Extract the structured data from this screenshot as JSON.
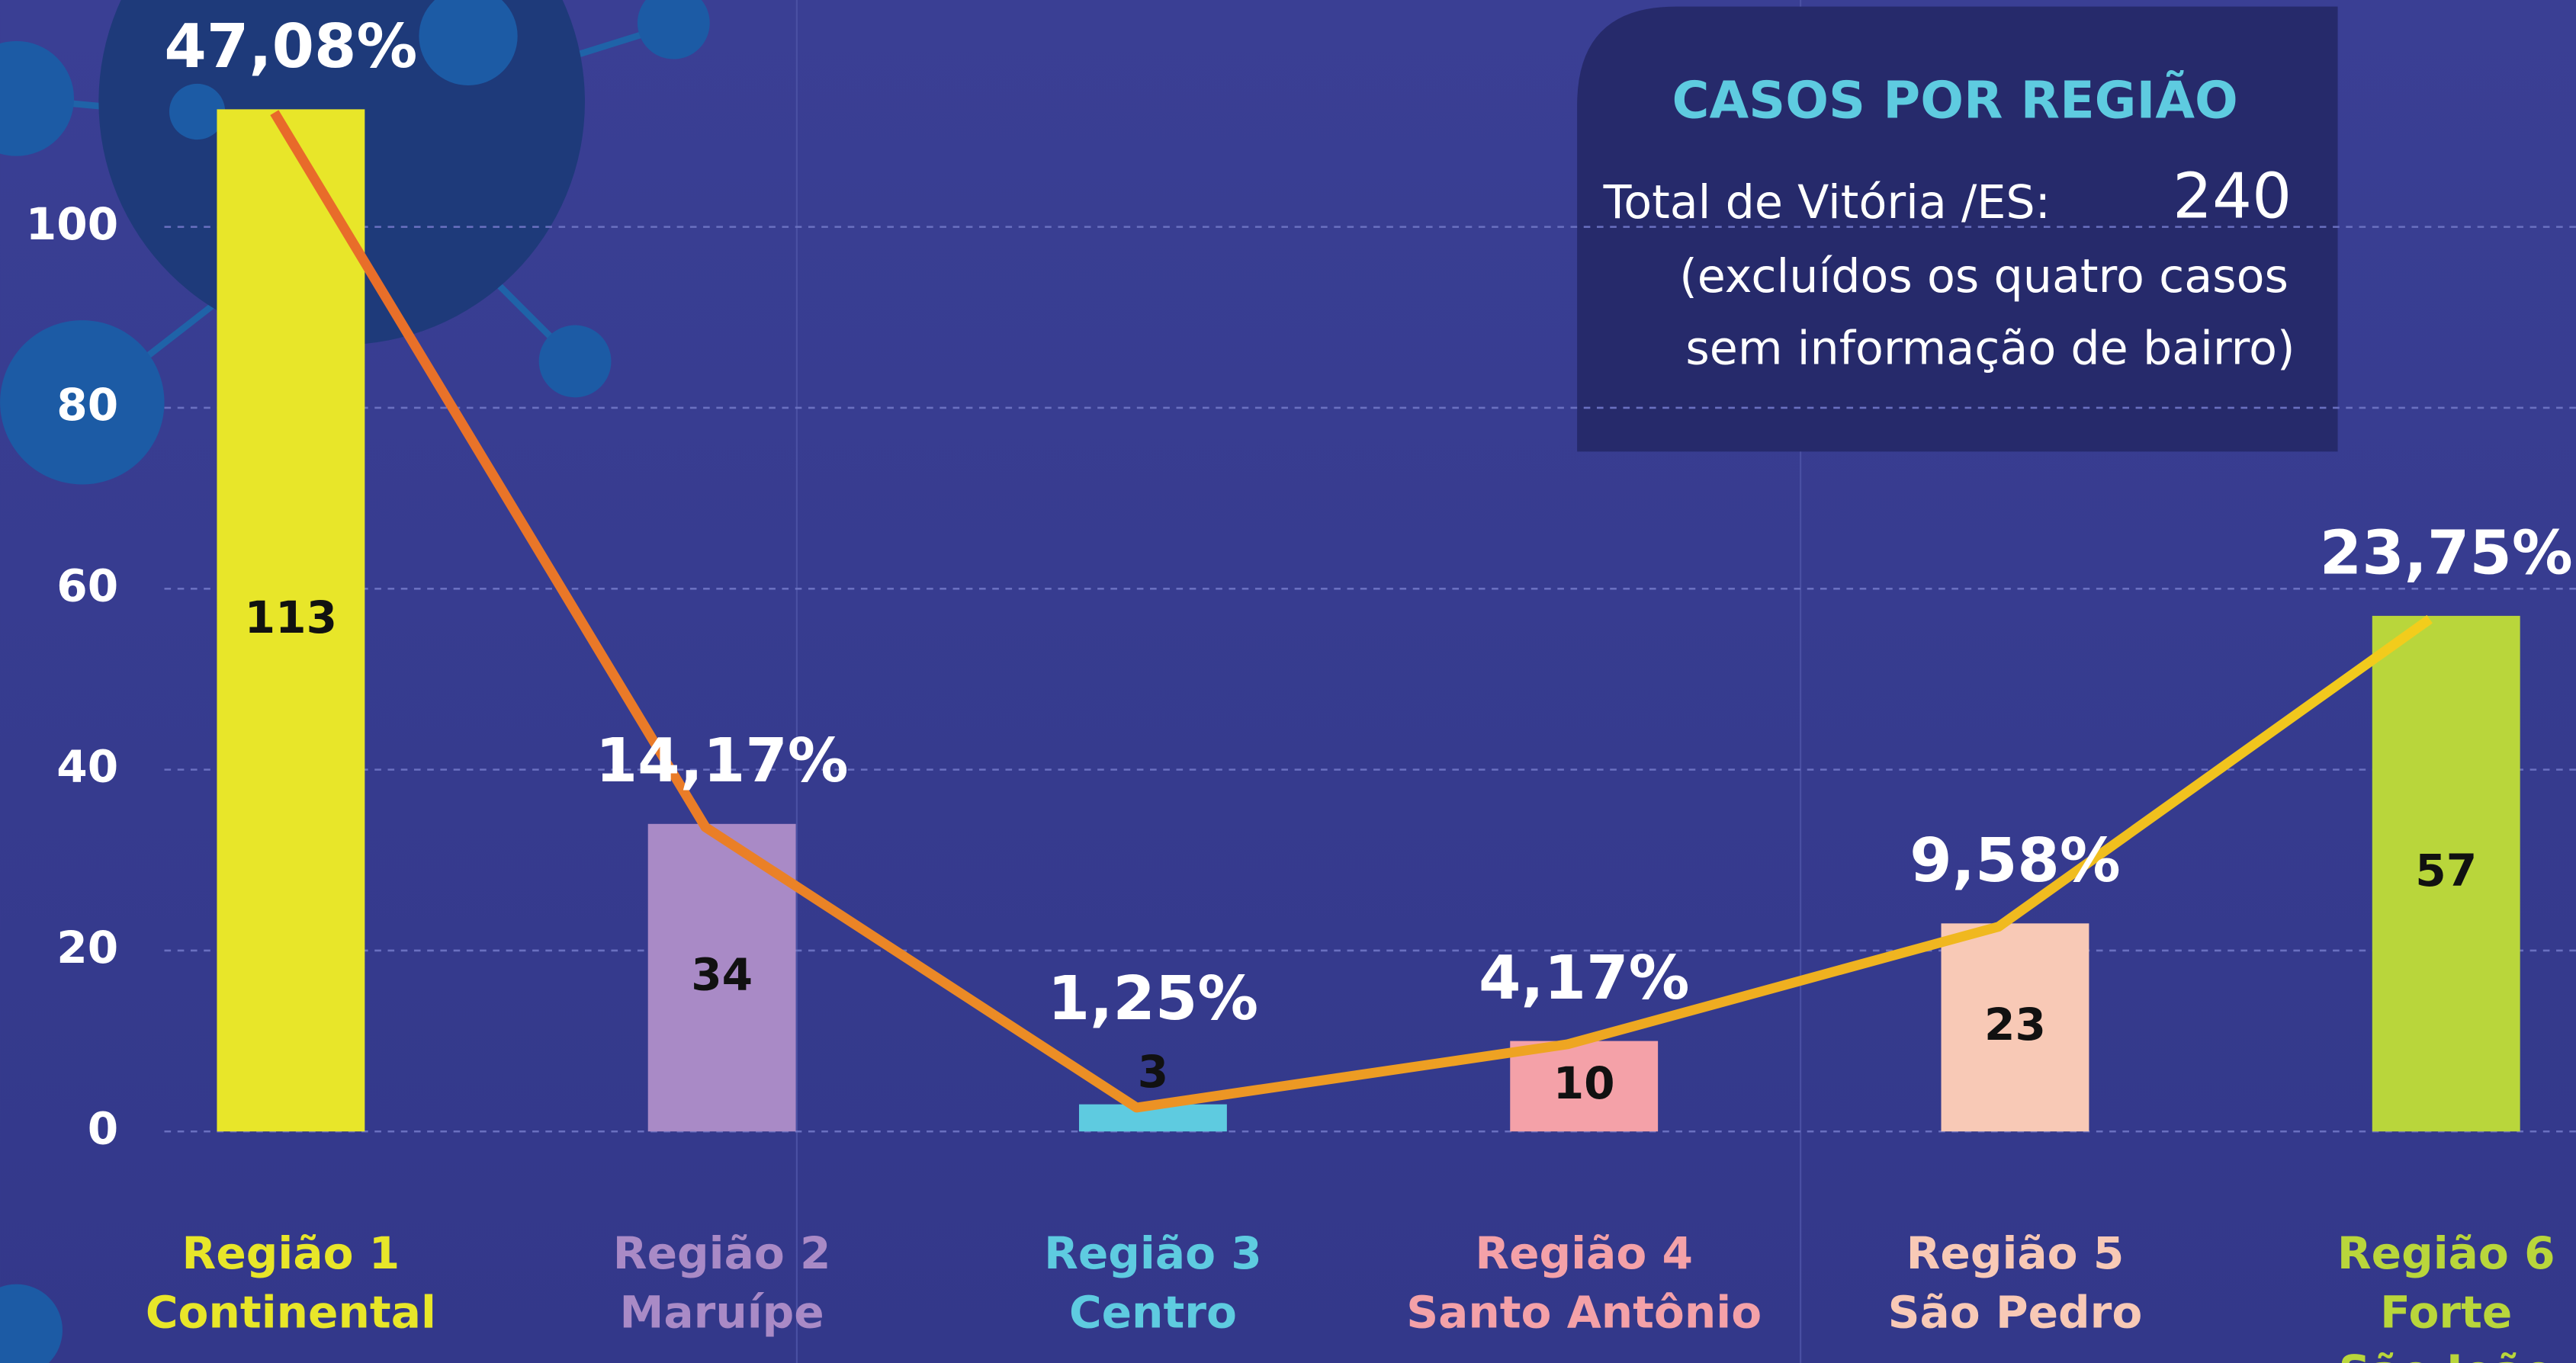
{
  "chart_data": {
    "type": "bar",
    "categories": [
      [
        "Região 1",
        "Continental"
      ],
      [
        "Região 2",
        "Maruípe"
      ],
      [
        "Região 3",
        "Centro"
      ],
      [
        "Região 4",
        "Santo Antônio"
      ],
      [
        "Região 5",
        "São Pedro"
      ],
      [
        "Região 6",
        "Forte",
        "São João"
      ]
    ],
    "values": [
      113,
      34,
      3,
      10,
      23,
      57
    ],
    "colors": [
      "#e8e629",
      "#a98ac6",
      "#5ecbe0",
      "#f4a1a8",
      "#f8c9b6",
      "#b9d63b"
    ],
    "percent_labels": [
      "47,08%",
      "14,17%",
      "1,25%",
      "4,17%",
      "9,58%",
      "23,75%"
    ],
    "line_colors": [
      "#e8692a",
      "#f2cf1c"
    ],
    "ylim": [
      0,
      120
    ],
    "yticks": [
      0,
      20,
      40,
      60,
      80,
      100
    ],
    "grid": true,
    "info_box": {
      "title": "CASOS POR REGIÃO",
      "total_label": "Total de Vitória /ES:",
      "total": 240,
      "note": [
        "(excluídos os quatro casos",
        "sem informação de bairro)"
      ]
    }
  }
}
